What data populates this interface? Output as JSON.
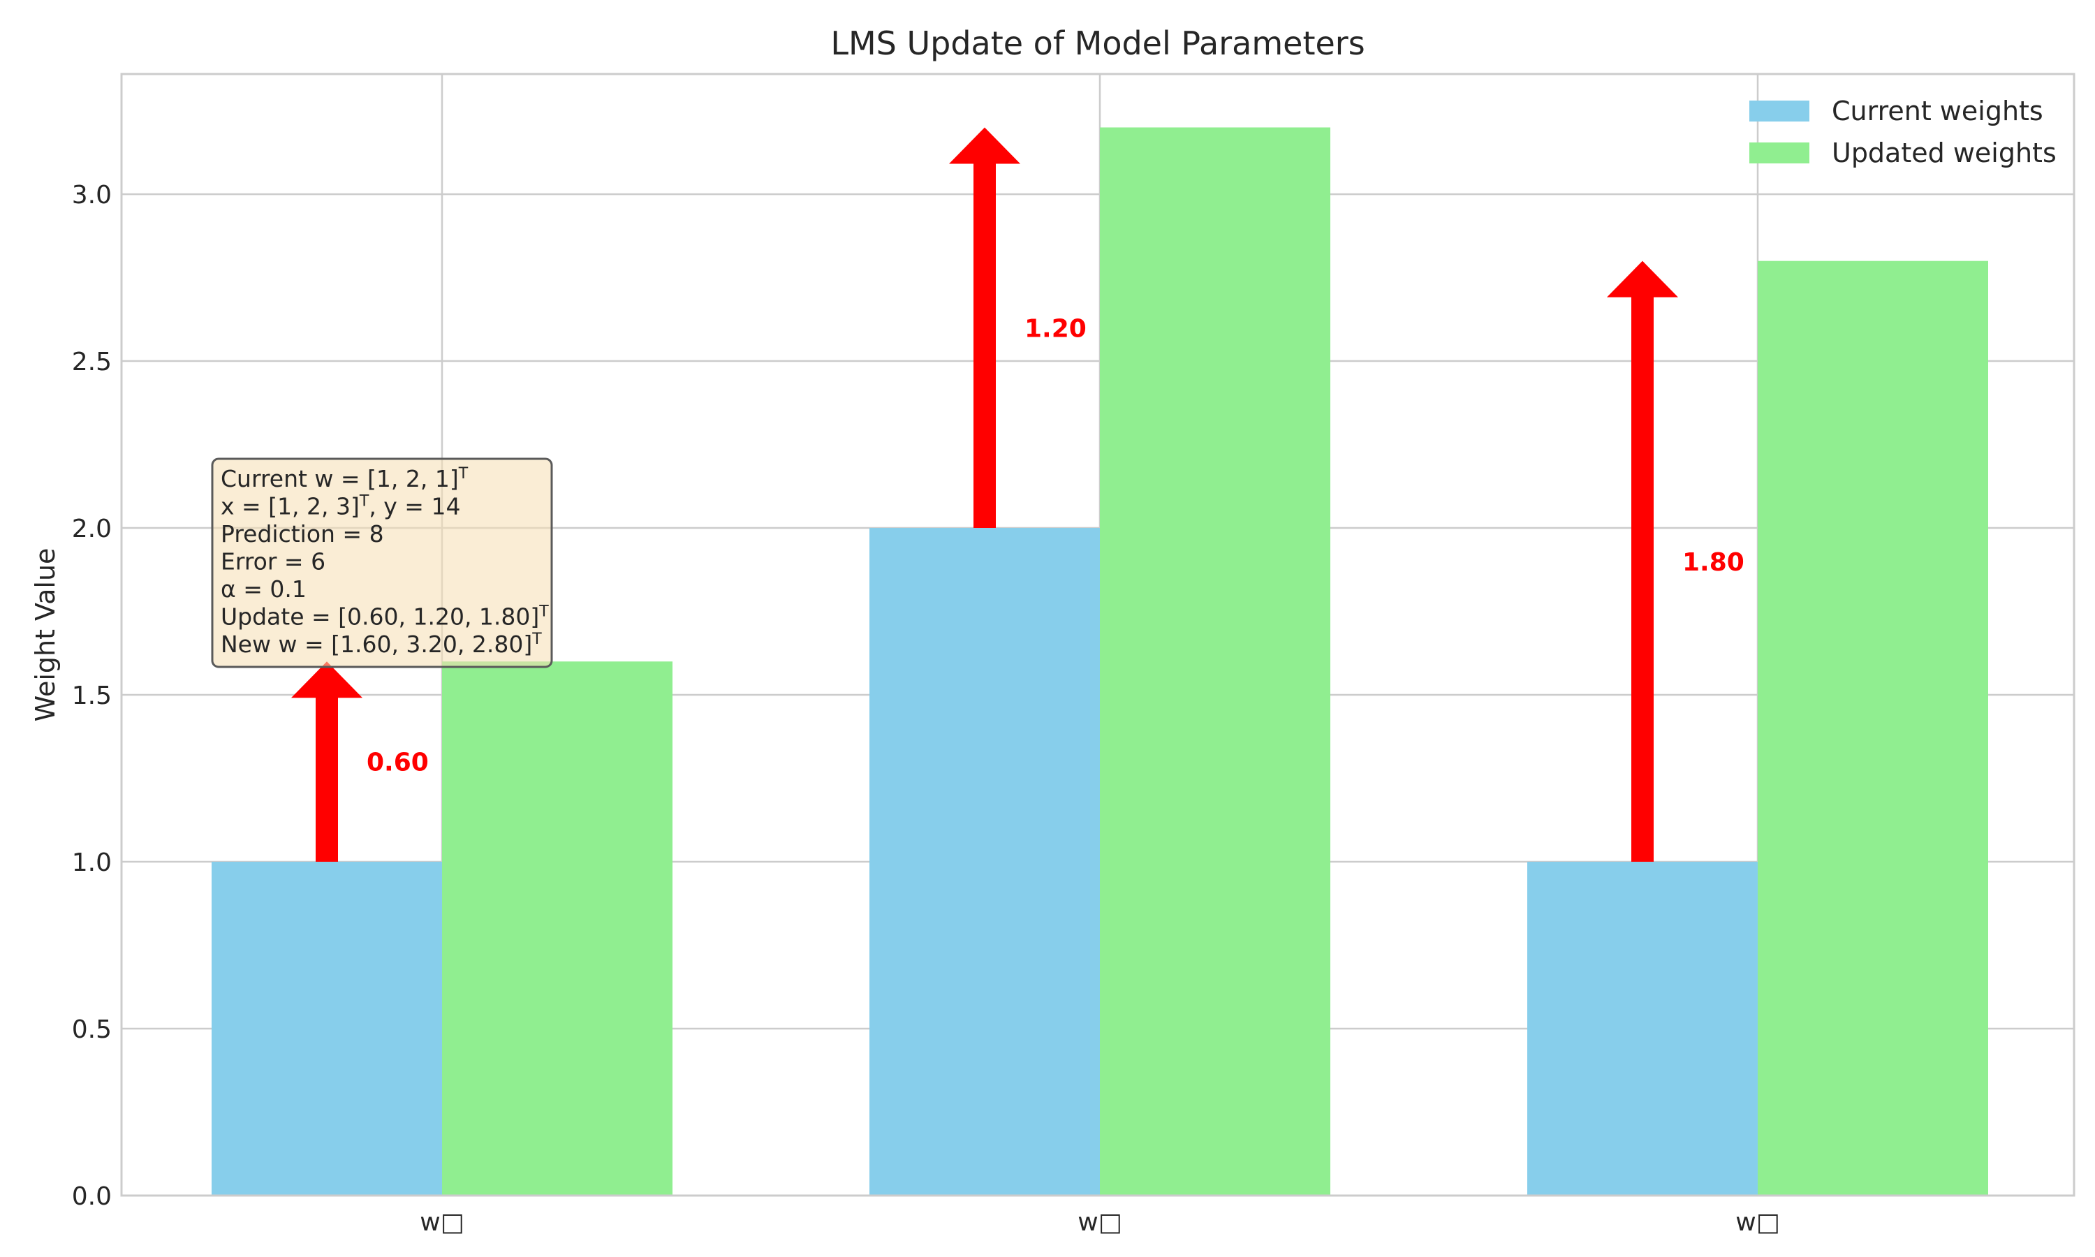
{
  "chart_data": {
    "type": "bar",
    "title": "LMS Update of Model Parameters",
    "xlabel": "",
    "ylabel": "Weight Value",
    "categories": [
      "w□",
      "w□",
      "w□"
    ],
    "series": [
      {
        "name": "Current weights",
        "color": "#87CEEB",
        "values": [
          1.0,
          2.0,
          1.0
        ]
      },
      {
        "name": "Updated weights",
        "color": "#90EE90",
        "values": [
          1.6,
          3.2,
          2.8
        ]
      }
    ],
    "updates": [
      {
        "from": 1.0,
        "delta": 0.6,
        "label": "0.60"
      },
      {
        "from": 2.0,
        "delta": 1.2,
        "label": "1.20"
      },
      {
        "from": 1.0,
        "delta": 1.8,
        "label": "1.80"
      }
    ],
    "arrow_color": "#FF0000",
    "ylim": [
      0,
      3.36
    ],
    "yticks": [
      0.0,
      0.5,
      1.0,
      1.5,
      2.0,
      2.5,
      3.0
    ],
    "ytick_labels": [
      "0.0",
      "0.5",
      "1.0",
      "1.5",
      "2.0",
      "2.5",
      "3.0"
    ],
    "grid": true,
    "legend_position": "top-right",
    "info_box": {
      "lines": [
        {
          "text": "Current w = [1, 2, 1]",
          "sup": "T",
          "rest": ""
        },
        {
          "text": "x = [1, 2, 3]",
          "sup": "T",
          "rest": ", y = 14"
        },
        {
          "text": "Prediction = 8",
          "sup": "",
          "rest": ""
        },
        {
          "text": "Error = 6",
          "sup": "",
          "rest": ""
        },
        {
          "text": "α = 0.1",
          "sup": "",
          "rest": ""
        },
        {
          "text": "Update = [0.60, 1.20, 1.80]",
          "sup": "T",
          "rest": ""
        },
        {
          "text": "New w = [1.60, 3.20, 2.80]",
          "sup": "T",
          "rest": ""
        }
      ],
      "background": "#F5DEB3",
      "border": "#5a5a5a"
    }
  }
}
